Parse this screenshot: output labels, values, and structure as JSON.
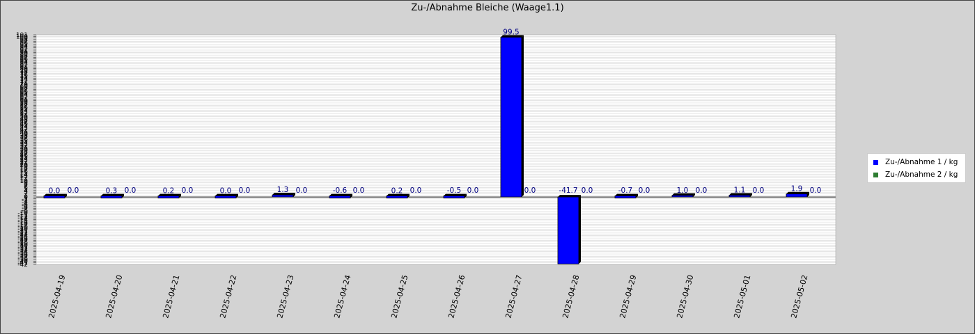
{
  "chart_data": {
    "type": "bar",
    "title": "Zu-/Abnahme Bleiche (Waage1.1)",
    "xlabel": "",
    "ylabel": "",
    "ylim": [
      -42,
      101
    ],
    "grid": true,
    "legend_position": "right",
    "categories": [
      "2025-04-19",
      "2025-04-20",
      "2025-04-21",
      "2025-04-22",
      "2025-04-23",
      "2025-04-24",
      "2025-04-25",
      "2025-04-26",
      "2025-04-27",
      "2025-04-28",
      "2025-04-29",
      "2025-04-30",
      "2025-05-01",
      "2025-05-02"
    ],
    "series": [
      {
        "name": "Zu-/Abnahme 1 / kg",
        "color": "#0000ff",
        "values": [
          0.0,
          0.3,
          0.2,
          0.0,
          1.3,
          -0.6,
          0.2,
          -0.5,
          99.5,
          -41.7,
          -0.7,
          1.0,
          1.1,
          1.9
        ],
        "labels": [
          "0.0",
          "0.3",
          "0.2",
          "0.0",
          "1.3",
          "-0.6",
          "0.2",
          "-0.5",
          "99.5",
          "-41.7",
          "-0.7",
          "1.0",
          "1.1",
          "1.9"
        ]
      },
      {
        "name": "Zu-/Abnahme 2 / kg",
        "color": "#2e7d32",
        "values": [
          0.0,
          0.0,
          0.0,
          0.0,
          0.0,
          0.0,
          0.0,
          0.0,
          0.0,
          0.0,
          0.0,
          0.0,
          0.0,
          0.0
        ],
        "labels": [
          "0.0",
          "0.0",
          "0.0",
          "0.0",
          "0.0",
          "0.0",
          "0.0",
          "0.0",
          "0.0",
          "0.0",
          "0.0",
          "0.0",
          "0.0",
          "0.0"
        ]
      }
    ],
    "y_tick_labels": [
      "-42",
      "-41",
      "-40",
      "-39",
      "-38",
      "-37",
      "-36",
      "-35",
      "-34",
      "-33",
      "-32",
      "-31",
      "-30",
      "-29",
      "-28",
      "-27",
      "-26",
      "-25",
      "-24",
      "-23",
      "-22",
      "-21",
      "-20",
      "-19",
      "-18",
      "-17",
      "-16",
      "-15",
      "-14",
      "-13",
      "-12",
      "-11",
      "-10",
      "-9",
      "-8",
      "-7",
      "-6",
      "-5",
      "-4",
      "-3",
      "-2",
      "-1",
      "0",
      "1",
      "2",
      "3",
      "4",
      "5",
      "6",
      "7",
      "8",
      "9",
      "10",
      "11",
      "12",
      "13",
      "14",
      "15",
      "16",
      "17",
      "18",
      "19",
      "20",
      "21",
      "22",
      "23",
      "24",
      "25",
      "26",
      "27",
      "28",
      "29",
      "30",
      "31",
      "32",
      "33",
      "34",
      "35",
      "36",
      "37",
      "38",
      "39",
      "40",
      "41",
      "42",
      "43",
      "44",
      "45",
      "46",
      "47",
      "48",
      "49",
      "50",
      "51",
      "52",
      "53",
      "54",
      "55",
      "56",
      "57",
      "58",
      "59",
      "60",
      "61",
      "62",
      "63",
      "64",
      "65",
      "66",
      "67",
      "68",
      "69",
      "70",
      "71",
      "72",
      "73",
      "74",
      "75",
      "76",
      "77",
      "78",
      "79",
      "80",
      "81",
      "82",
      "83",
      "84",
      "85",
      "86",
      "87",
      "88",
      "89",
      "90",
      "91",
      "92",
      "93",
      "94",
      "95",
      "96",
      "97",
      "98",
      "99",
      "100",
      "101"
    ]
  },
  "colors": {
    "background": "#d3d3d3",
    "plot_background": "#ffffff",
    "grid": "#cccccc",
    "value_label": "#000080",
    "bar_shadow": "#000000"
  }
}
